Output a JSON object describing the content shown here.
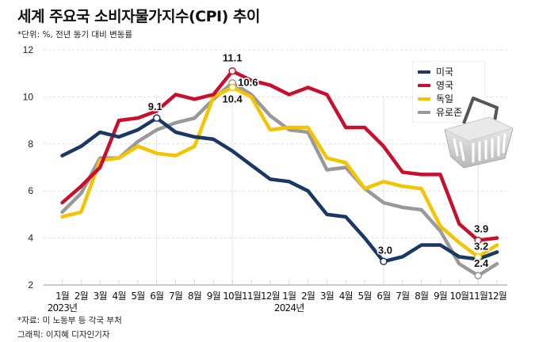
{
  "header": {
    "title": "세계 주요국 소비자물가지수(CPI) 추이",
    "unit_note": "*단위: %, 전년 동기 대비 변동률"
  },
  "footer": {
    "source": "*자료: 미 노동부 등 각국 부처",
    "credit": "그래픽: 이지혜 디자인기자"
  },
  "chart_data": {
    "type": "line",
    "title": "세계 주요국 소비자물가지수(CPI) 추이",
    "xlabel": "",
    "ylabel": "",
    "ylim": [
      2,
      12
    ],
    "yticks": [
      "2",
      "4",
      "6",
      "8",
      "10",
      "12"
    ],
    "grid": true,
    "legend_position": "top-right",
    "categories": [
      "1월",
      "2월",
      "3월",
      "4월",
      "5월",
      "6월",
      "7월",
      "8월",
      "9월",
      "10월",
      "11월",
      "12월",
      "1월",
      "2월",
      "3월",
      "4월",
      "5월",
      "6월",
      "7월",
      "8월",
      "9월",
      "10월",
      "11월",
      "12월"
    ],
    "year_labels": [
      {
        "index": 0,
        "label": "2023년"
      },
      {
        "index": 12,
        "label": "2024년"
      }
    ],
    "series": [
      {
        "name": "미국",
        "color": "#1b3764",
        "values": [
          7.5,
          7.9,
          8.5,
          8.3,
          8.6,
          9.1,
          8.5,
          8.3,
          8.2,
          7.7,
          7.1,
          6.5,
          6.4,
          6.0,
          5.0,
          4.9,
          4.0,
          3.0,
          3.2,
          3.7,
          3.7,
          3.2,
          3.1,
          3.4
        ]
      },
      {
        "name": "영국",
        "color": "#c8102e",
        "values": [
          5.5,
          6.2,
          7.0,
          9.0,
          9.1,
          9.4,
          10.1,
          9.9,
          10.1,
          11.1,
          10.7,
          10.5,
          10.1,
          10.4,
          10.1,
          8.7,
          8.7,
          7.9,
          6.8,
          6.7,
          6.7,
          4.6,
          3.9,
          4.0
        ]
      },
      {
        "name": "독일",
        "color": "#f5c400",
        "values": [
          4.9,
          5.1,
          7.3,
          7.4,
          7.9,
          7.6,
          7.5,
          7.9,
          10.0,
          10.4,
          10.0,
          8.6,
          8.7,
          8.7,
          7.4,
          7.2,
          6.1,
          6.4,
          6.2,
          6.1,
          4.5,
          3.8,
          3.2,
          3.7
        ]
      },
      {
        "name": "유로존",
        "color": "#999999",
        "values": [
          5.1,
          5.9,
          7.4,
          7.4,
          8.1,
          8.6,
          8.9,
          9.1,
          9.9,
          10.6,
          10.1,
          9.2,
          8.6,
          8.5,
          6.9,
          7.0,
          6.1,
          5.5,
          5.3,
          5.2,
          4.3,
          2.9,
          2.4,
          2.9
        ]
      }
    ],
    "annotations": [
      {
        "series": 0,
        "index": 5,
        "label": "9.1"
      },
      {
        "series": 1,
        "index": 9,
        "label": "11.1"
      },
      {
        "series": 3,
        "index": 9,
        "label": "10.6"
      },
      {
        "series": 2,
        "index": 9,
        "label": "10.4"
      },
      {
        "series": 0,
        "index": 17,
        "label": "3.0"
      },
      {
        "series": 1,
        "index": 22,
        "label": "3.9"
      },
      {
        "series": 2,
        "index": 22,
        "label": "3.2"
      },
      {
        "series": 3,
        "index": 22,
        "label": "2.4"
      }
    ]
  }
}
